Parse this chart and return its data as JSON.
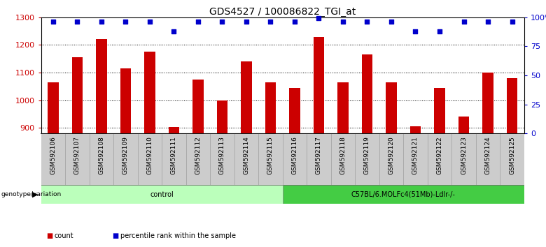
{
  "title": "GDS4527 / 100086822_TGI_at",
  "samples": [
    "GSM592106",
    "GSM592107",
    "GSM592108",
    "GSM592109",
    "GSM592110",
    "GSM592111",
    "GSM592112",
    "GSM592113",
    "GSM592114",
    "GSM592115",
    "GSM592116",
    "GSM592117",
    "GSM592118",
    "GSM592119",
    "GSM592120",
    "GSM592121",
    "GSM592122",
    "GSM592123",
    "GSM592124",
    "GSM592125"
  ],
  "counts": [
    1065,
    1155,
    1220,
    1115,
    1175,
    903,
    1075,
    1000,
    1140,
    1065,
    1045,
    1230,
    1065,
    1165,
    1065,
    905,
    1045,
    940,
    1100,
    1080
  ],
  "percentile_ranks": [
    96,
    96,
    96,
    96,
    96,
    88,
    96,
    96,
    96,
    96,
    96,
    99,
    96,
    96,
    96,
    88,
    88,
    96,
    96,
    96
  ],
  "ylim_left": [
    880,
    1300
  ],
  "ylim_right": [
    0,
    100
  ],
  "yticks_left": [
    900,
    1000,
    1100,
    1200,
    1300
  ],
  "yticks_right": [
    0,
    25,
    50,
    75,
    100
  ],
  "yticklabels_right": [
    "0",
    "25",
    "50",
    "75",
    "100%"
  ],
  "bar_color": "#cc0000",
  "dot_color": "#0000cc",
  "bar_bottom": 880,
  "groups": [
    {
      "label": "control",
      "start": 0,
      "end": 10,
      "color": "#bbffbb"
    },
    {
      "label": "C57BL/6.MOLFc4(51Mb)-Ldlr-/-",
      "start": 10,
      "end": 20,
      "color": "#44cc44"
    }
  ],
  "group_row_label": "genotype/variation",
  "legend_items": [
    {
      "color": "#cc0000",
      "label": "count"
    },
    {
      "color": "#0000cc",
      "label": "percentile rank within the sample"
    }
  ],
  "background_color": "#ffffff",
  "plot_bg_color": "#ffffff",
  "tick_label_bg": "#cccccc",
  "grid_color": "#000000",
  "title_fontsize": 10,
  "tick_fontsize": 6.5,
  "axis_label_color_left": "#cc0000",
  "axis_label_color_right": "#0000cc",
  "n_samples": 20
}
